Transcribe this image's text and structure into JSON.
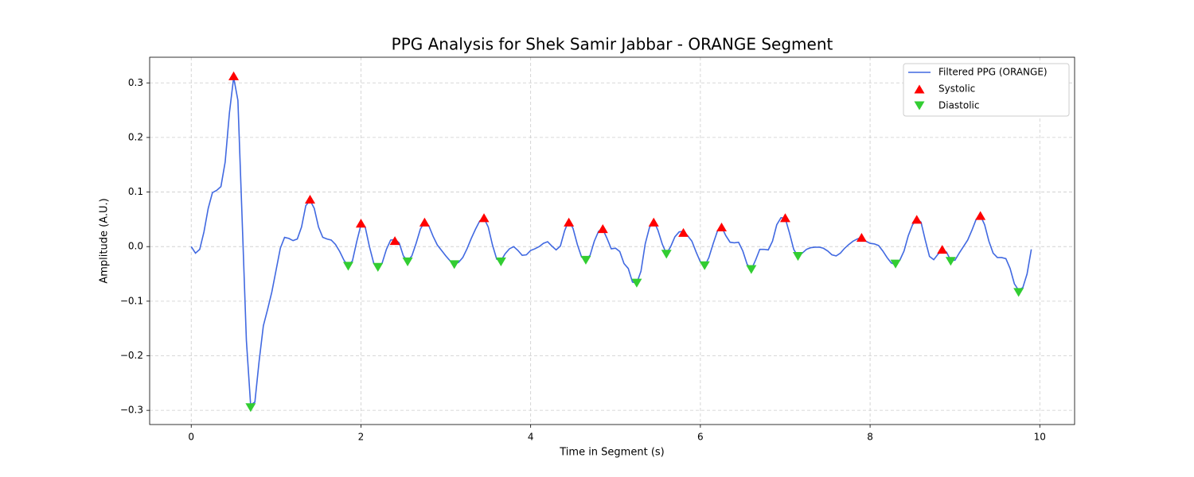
{
  "chart_data": {
    "type": "line",
    "title": "PPG Analysis for Shek Samir Jabbar - ORANGE Segment",
    "x_label": "Time in Segment (s)",
    "y_label": "Amplitude (A.U.)",
    "xlim": [
      -0.49,
      10.41
    ],
    "ylim": [
      -0.326,
      0.347
    ],
    "xticks": [
      0,
      2,
      4,
      6,
      8,
      10
    ],
    "yticks": [
      {
        "value": -0.3,
        "label": "−0.3"
      },
      {
        "value": -0.2,
        "label": "−0.2"
      },
      {
        "value": -0.1,
        "label": "−0.1"
      },
      {
        "value": 0,
        "label": "0.0"
      },
      0.1,
      0.2,
      0.3
    ],
    "grid": true,
    "legend": "upper right",
    "series": [
      {
        "name": "Filtered PPG (ORANGE)",
        "type": "line",
        "color": "#4169e1",
        "x": [
          0,
          0.05,
          0.1,
          0.15,
          0.2,
          0.25,
          0.3,
          0.35,
          0.4,
          0.45,
          0.5,
          0.55,
          0.6,
          0.65,
          0.7,
          0.75,
          0.8,
          0.85,
          0.9,
          0.95,
          1,
          1.05,
          1.1,
          1.15,
          1.2,
          1.25,
          1.3,
          1.35,
          1.4,
          1.45,
          1.5,
          1.55,
          1.6,
          1.65,
          1.7,
          1.75,
          1.8,
          1.85,
          1.9,
          1.95,
          2,
          2.05,
          2.1,
          2.15,
          2.2,
          2.25,
          2.3,
          2.35,
          2.4,
          2.45,
          2.5,
          2.55,
          2.6,
          2.65,
          2.7,
          2.75,
          2.8,
          2.85,
          2.9,
          2.95,
          3,
          3.05,
          3.1,
          3.15,
          3.2,
          3.25,
          3.3,
          3.35,
          3.4,
          3.45,
          3.5,
          3.55,
          3.6,
          3.65,
          3.7,
          3.75,
          3.8,
          3.85,
          3.9,
          3.95,
          4,
          4.05,
          4.1,
          4.15,
          4.2,
          4.25,
          4.3,
          4.35,
          4.4,
          4.45,
          4.5,
          4.55,
          4.6,
          4.65,
          4.7,
          4.75,
          4.8,
          4.85,
          4.9,
          4.95,
          5,
          5.05,
          5.1,
          5.15,
          5.2,
          5.25,
          5.3,
          5.35,
          5.4,
          5.45,
          5.5,
          5.55,
          5.6,
          5.65,
          5.7,
          5.75,
          5.8,
          5.85,
          5.9,
          5.95,
          6,
          6.05,
          6.1,
          6.15,
          6.2,
          6.25,
          6.3,
          6.35,
          6.4,
          6.45,
          6.5,
          6.55,
          6.6,
          6.65,
          6.7,
          6.75,
          6.8,
          6.85,
          6.9,
          6.95,
          7,
          7.05,
          7.1,
          7.15,
          7.2,
          7.25,
          7.3,
          7.35,
          7.4,
          7.45,
          7.5,
          7.55,
          7.6,
          7.65,
          7.7,
          7.75,
          7.8,
          7.85,
          7.9,
          7.95,
          8,
          8.05,
          8.1,
          8.15,
          8.2,
          8.25,
          8.3,
          8.35,
          8.4,
          8.45,
          8.5,
          8.55,
          8.6,
          8.65,
          8.7,
          8.75,
          8.8,
          8.85,
          8.9,
          8.95,
          9,
          9.05,
          9.1,
          9.15,
          9.2,
          9.25,
          9.3,
          9.35,
          9.4,
          9.45,
          9.5,
          9.55,
          9.6,
          9.65,
          9.7,
          9.75,
          9.8,
          9.85,
          9.9
        ],
        "values": [
          0,
          -0.012,
          -0.005,
          0.027,
          0.07,
          0.099,
          0.103,
          0.11,
          0.155,
          0.245,
          0.31,
          0.268,
          0.05,
          -0.172,
          -0.29,
          -0.285,
          -0.21,
          -0.145,
          -0.115,
          -0.083,
          -0.043,
          -0.003,
          0.017,
          0.015,
          0.011,
          0.014,
          0.036,
          0.075,
          0.085,
          0.07,
          0.036,
          0.017,
          0.014,
          0.012,
          0.004,
          -0.009,
          -0.025,
          -0.035,
          -0.026,
          0.009,
          0.04,
          0.036,
          0,
          -0.03,
          -0.037,
          -0.03,
          -0.005,
          0.012,
          0.013,
          0.007,
          -0.017,
          -0.026,
          -0.017,
          0.006,
          0.032,
          0.045,
          0.038,
          0.019,
          0.003,
          -0.007,
          -0.017,
          -0.026,
          -0.032,
          -0.029,
          -0.02,
          -0.004,
          0.015,
          0.032,
          0.047,
          0.052,
          0.036,
          0.003,
          -0.023,
          -0.026,
          -0.013,
          -0.004,
          0,
          -0.007,
          -0.016,
          -0.015,
          -0.007,
          -0.004,
          0,
          0.006,
          0.009,
          0.001,
          -0.006,
          0.001,
          0.029,
          0.048,
          0.033,
          0.004,
          -0.019,
          -0.023,
          -0.016,
          0.01,
          0.028,
          0.032,
          0.015,
          -0.004,
          -0.003,
          -0.009,
          -0.031,
          -0.04,
          -0.065,
          -0.067,
          -0.045,
          0.005,
          0.035,
          0.047,
          0.03,
          0.005,
          -0.013,
          0,
          0.018,
          0.027,
          0.028,
          0.02,
          0.01,
          -0.01,
          -0.028,
          -0.036,
          -0.02,
          0.005,
          0.028,
          0.036,
          0.02,
          0.008,
          0.007,
          0.008,
          -0.008,
          -0.032,
          -0.042,
          -0.025,
          -0.005,
          -0.005,
          -0.006,
          0.01,
          0.04,
          0.053,
          0.052,
          0.025,
          -0.005,
          -0.018,
          -0.012,
          -0.005,
          -0.002,
          -0.001,
          -0.001,
          -0.003,
          -0.008,
          -0.015,
          -0.017,
          -0.012,
          -0.003,
          0.004,
          0.01,
          0.014,
          0.017,
          0.01,
          0.006,
          0.005,
          0.002,
          -0.008,
          -0.02,
          -0.03,
          -0.033,
          -0.025,
          -0.008,
          0.02,
          0.04,
          0.05,
          0.045,
          0.012,
          -0.018,
          -0.024,
          -0.014,
          -0.006,
          -0.01,
          -0.025,
          -0.025,
          -0.012,
          0,
          0.012,
          0.03,
          0.05,
          0.057,
          0.04,
          0.01,
          -0.012,
          -0.02,
          -0.02,
          -0.022,
          -0.04,
          -0.068,
          -0.08,
          -0.075,
          -0.05,
          -0.005
        ]
      },
      {
        "name": "Systolic",
        "type": "scatter",
        "marker": "triangle-up",
        "color": "#ff0000",
        "x": [
          0.5,
          1.4,
          2.0,
          2.4,
          2.75,
          3.45,
          4.45,
          4.85,
          5.45,
          5.8,
          6.25,
          7.0,
          7.9,
          8.55,
          8.85,
          9.3
        ],
        "values": [
          0.313,
          0.087,
          0.043,
          0.011,
          0.045,
          0.053,
          0.045,
          0.033,
          0.045,
          0.026,
          0.036,
          0.053,
          0.017,
          0.05,
          -0.005,
          0.057
        ]
      },
      {
        "name": "Diastolic",
        "type": "scatter",
        "marker": "triangle-down",
        "color": "#32cd32",
        "x": [
          0.7,
          1.85,
          2.2,
          2.55,
          3.1,
          3.65,
          4.65,
          5.25,
          5.6,
          6.05,
          6.6,
          7.15,
          8.3,
          8.95,
          9.75
        ],
        "values": [
          -0.295,
          -0.036,
          -0.038,
          -0.028,
          -0.033,
          -0.028,
          -0.025,
          -0.067,
          -0.014,
          -0.035,
          -0.042,
          -0.018,
          -0.032,
          -0.027,
          -0.084
        ]
      }
    ]
  }
}
